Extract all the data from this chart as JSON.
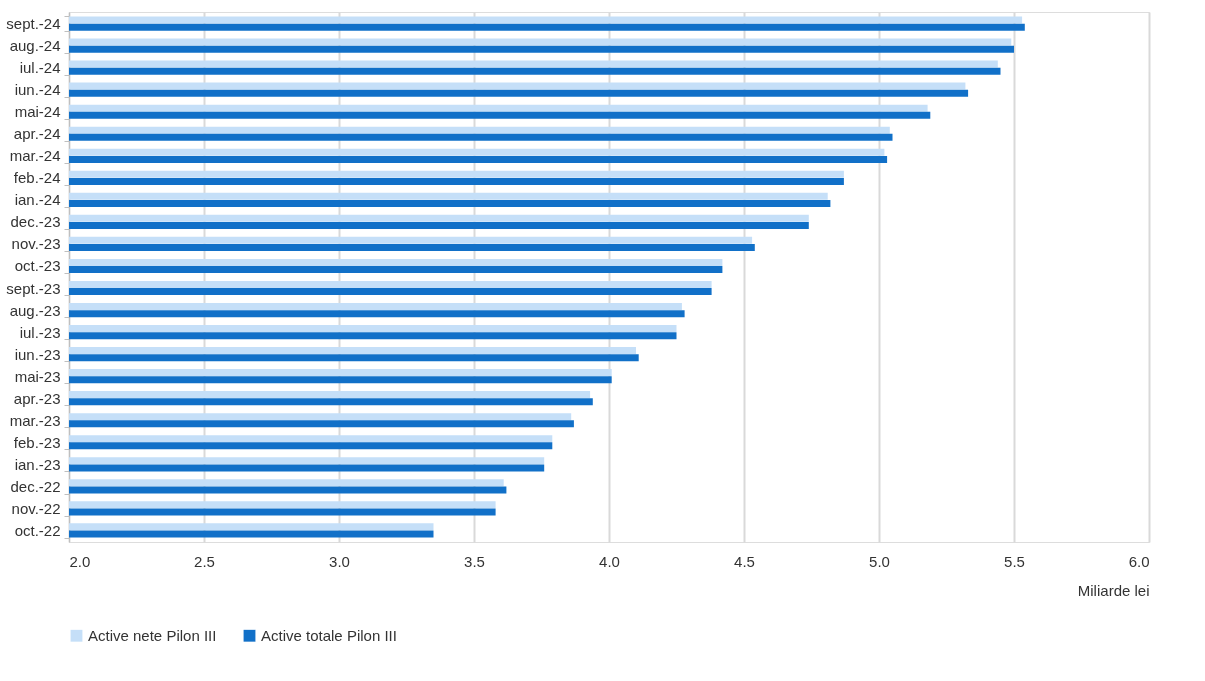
{
  "chart_data": {
    "type": "bar",
    "orientation": "horizontal",
    "xlabel": "Miliarde lei",
    "categories": [
      "sept.-24",
      "aug.-24",
      "iul.-24",
      "iun.-24",
      "mai-24",
      "apr.-24",
      "mar.-24",
      "feb.-24",
      "ian.-24",
      "dec.-23",
      "nov.-23",
      "oct.-23",
      "sept.-23",
      "aug.-23",
      "iul.-23",
      "iun.-23",
      "mai-23",
      "apr.-23",
      "mar.-23",
      "feb.-23",
      "ian.-23",
      "dec.-22",
      "nov.-22",
      "oct.-22"
    ],
    "series": [
      {
        "name": "Active nete Pilon III",
        "color": "#c5dff8",
        "values": [
          5.53,
          5.49,
          5.44,
          5.32,
          5.18,
          5.04,
          5.02,
          4.87,
          4.81,
          4.74,
          4.53,
          4.42,
          4.38,
          4.27,
          4.25,
          4.1,
          4.01,
          3.93,
          3.86,
          3.79,
          3.76,
          3.61,
          3.58,
          3.35
        ]
      },
      {
        "name": "Active totale Pilon III",
        "color": "#1170c8",
        "values": [
          5.54,
          5.5,
          5.45,
          5.33,
          5.19,
          5.05,
          5.03,
          4.87,
          4.82,
          4.74,
          4.54,
          4.42,
          4.38,
          4.28,
          4.25,
          4.11,
          4.01,
          3.94,
          3.87,
          3.79,
          3.76,
          3.62,
          3.58,
          3.35
        ]
      }
    ],
    "xlim": [
      2.0,
      6.0
    ],
    "xticks": [
      {
        "value": 2,
        "label": "2.0"
      },
      2.5,
      {
        "value": 3,
        "label": "3.0"
      },
      3.5,
      {
        "value": 4,
        "label": "4.0"
      },
      4.5,
      {
        "value": 5,
        "label": "5.0"
      },
      5.5,
      {
        "value": 6,
        "label": "6.0"
      }
    ],
    "grid": "x",
    "legend": "bottom"
  }
}
